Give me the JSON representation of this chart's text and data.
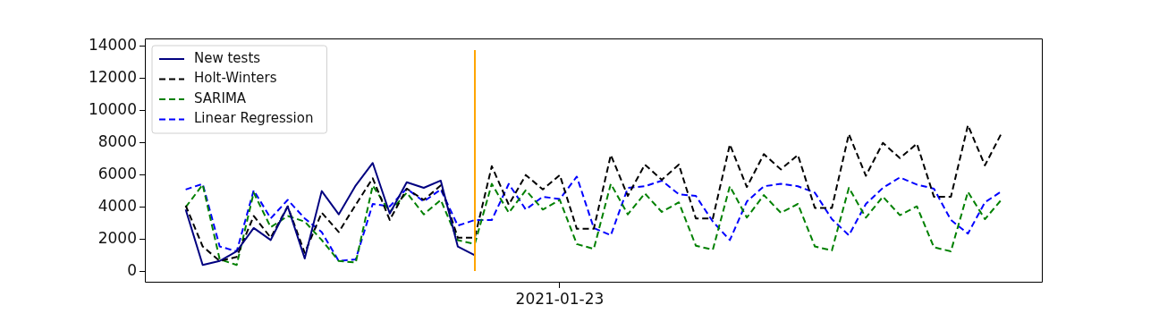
{
  "chart_data": {
    "type": "line",
    "categories": [
      null,
      null,
      null,
      null,
      null,
      null,
      null,
      null,
      null,
      null,
      null,
      null,
      null,
      null,
      null,
      null,
      null,
      null,
      null,
      null,
      null,
      null,
      "2021-01-23",
      null,
      null,
      null,
      null,
      null,
      null,
      null,
      null,
      null,
      null,
      null,
      null,
      null,
      null,
      null,
      null,
      null,
      null,
      null,
      null,
      null,
      null,
      null,
      null,
      null,
      null
    ],
    "series": [
      {
        "name": "New tests",
        "color": "#000080",
        "line_style": "solid",
        "values": [
          3850,
          400,
          650,
          1250,
          2700,
          1950,
          4050,
          800,
          5000,
          3550,
          5350,
          6750,
          3600,
          5550,
          5200,
          5650,
          1550,
          1000,
          null,
          null,
          null,
          null,
          null,
          null,
          null,
          null,
          null,
          null,
          null,
          null,
          null,
          null,
          null,
          null,
          null,
          null,
          null,
          null,
          null,
          null,
          null,
          null,
          null,
          null,
          null,
          null,
          null,
          null,
          null
        ]
      },
      {
        "name": "Holt-Winters",
        "color": "#000000",
        "line_style": "dashed",
        "values": [
          4100,
          1550,
          650,
          900,
          3450,
          2100,
          4050,
          1150,
          3650,
          2450,
          4150,
          5800,
          3200,
          5150,
          4450,
          5350,
          2100,
          2100,
          6550,
          4150,
          6000,
          5100,
          6000,
          2650,
          2650,
          7250,
          4700,
          6650,
          5700,
          6650,
          3300,
          3300,
          7900,
          5250,
          7300,
          6350,
          7250,
          3950,
          3950,
          8550,
          5950,
          8000,
          7050,
          7950,
          4650,
          4650,
          9100,
          6600,
          8650
        ]
      },
      {
        "name": "SARIMA",
        "color": "#008000",
        "line_style": "dashed",
        "values": [
          4000,
          5400,
          750,
          400,
          4900,
          2750,
          3450,
          3100,
          1950,
          650,
          550,
          5350,
          3700,
          4900,
          3550,
          4450,
          1950,
          1700,
          5450,
          3650,
          5050,
          3850,
          4450,
          1700,
          1400,
          5450,
          3550,
          4850,
          3700,
          4300,
          1600,
          1350,
          5300,
          3350,
          4750,
          3650,
          4200,
          1550,
          1300,
          5200,
          3350,
          4650,
          3500,
          4050,
          1500,
          1250,
          4950,
          3250,
          4500
        ]
      },
      {
        "name": "Linear Regression",
        "color": "#0000ff",
        "line_style": "dashed",
        "values": [
          5100,
          5450,
          1550,
          1250,
          5050,
          3300,
          4450,
          3300,
          2450,
          650,
          750,
          4200,
          4050,
          5150,
          4350,
          5100,
          2850,
          3200,
          3200,
          5450,
          3850,
          4650,
          4500,
          5900,
          2700,
          2250,
          5200,
          5300,
          5650,
          4800,
          4700,
          3100,
          1950,
          4350,
          5300,
          5450,
          5300,
          4900,
          3250,
          2250,
          4200,
          5200,
          5850,
          5400,
          5150,
          3200,
          2350,
          4300,
          5000
        ]
      }
    ],
    "ylim": [
      -700,
      14500
    ],
    "yticks": [
      0,
      2000,
      4000,
      6000,
      8000,
      10000,
      12000,
      14000
    ],
    "legend": "top left",
    "grid": false,
    "marker": "none"
  }
}
